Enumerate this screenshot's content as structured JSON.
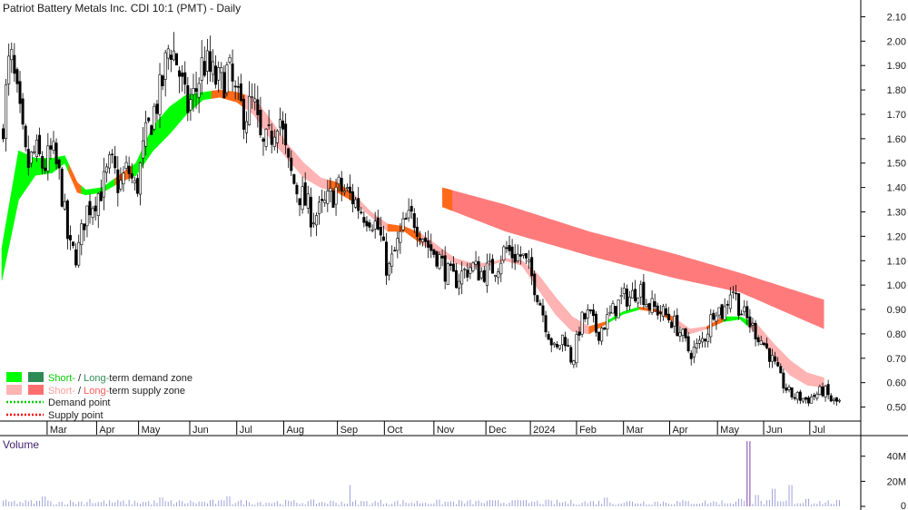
{
  "chart_data": {
    "type": "candlestick",
    "title": "Patriot Battery Metals Inc. CDI 10:1 (PMT) - Daily",
    "price_axis": {
      "range": [
        0.45,
        2.15
      ],
      "ticks": [
        "2.10",
        "2.00",
        "1.90",
        "1.80",
        "1.70",
        "1.60",
        "1.50",
        "1.40",
        "1.30",
        "1.20",
        "1.10",
        "1.00",
        "0.90",
        "0.80",
        "0.70",
        "0.60",
        "0.50"
      ]
    },
    "x_axis": {
      "range": [
        0,
        100
      ],
      "labels": [
        {
          "x": 5.4,
          "label": "Mar"
        },
        {
          "x": 11.3,
          "label": "Apr"
        },
        {
          "x": 16.3,
          "label": "May"
        },
        {
          "x": 22.4,
          "label": "Jun"
        },
        {
          "x": 28.0,
          "label": "Jul"
        },
        {
          "x": 33.6,
          "label": "Aug"
        },
        {
          "x": 40.0,
          "label": "Sep"
        },
        {
          "x": 45.6,
          "label": "Oct"
        },
        {
          "x": 51.5,
          "label": "Nov"
        },
        {
          "x": 57.7,
          "label": "Dec"
        },
        {
          "x": 63.0,
          "label": "2024"
        },
        {
          "x": 68.5,
          "label": "Feb"
        },
        {
          "x": 74.1,
          "label": "Mar"
        },
        {
          "x": 79.6,
          "label": "Apr"
        },
        {
          "x": 85.3,
          "label": "May"
        },
        {
          "x": 90.8,
          "label": "Jun"
        },
        {
          "x": 96.3,
          "label": "Jul"
        }
      ]
    },
    "price_path": [
      [
        0,
        1.62
      ],
      [
        1,
        1.95
      ],
      [
        2,
        1.72
      ],
      [
        3,
        1.48
      ],
      [
        4,
        1.55
      ],
      [
        5,
        1.48
      ],
      [
        6,
        1.55
      ],
      [
        7,
        1.42
      ],
      [
        8,
        1.15
      ],
      [
        9,
        1.12
      ],
      [
        10,
        1.3
      ],
      [
        11,
        1.35
      ],
      [
        12,
        1.4
      ],
      [
        13,
        1.5
      ],
      [
        14,
        1.4
      ],
      [
        15,
        1.48
      ],
      [
        16,
        1.38
      ],
      [
        17,
        1.58
      ],
      [
        18,
        1.7
      ],
      [
        19,
        1.8
      ],
      [
        20,
        2.0
      ],
      [
        21,
        1.9
      ],
      [
        22,
        1.72
      ],
      [
        23,
        1.78
      ],
      [
        24,
        1.92
      ],
      [
        25,
        1.86
      ],
      [
        26,
        1.82
      ],
      [
        27,
        1.88
      ],
      [
        28,
        1.75
      ],
      [
        29,
        1.7
      ],
      [
        30,
        1.75
      ],
      [
        31,
        1.55
      ],
      [
        32,
        1.6
      ],
      [
        33,
        1.72
      ],
      [
        34,
        1.5
      ],
      [
        35,
        1.4
      ],
      [
        36,
        1.35
      ],
      [
        37,
        1.28
      ],
      [
        38,
        1.3
      ],
      [
        39,
        1.35
      ],
      [
        40,
        1.4
      ],
      [
        41,
        1.38
      ],
      [
        42,
        1.35
      ],
      [
        43,
        1.3
      ],
      [
        44,
        1.28
      ],
      [
        45,
        1.22
      ],
      [
        46,
        1.05
      ],
      [
        47,
        1.15
      ],
      [
        48,
        1.25
      ],
      [
        49,
        1.28
      ],
      [
        50,
        1.22
      ],
      [
        51,
        1.15
      ],
      [
        52,
        1.12
      ],
      [
        53,
        1.05
      ],
      [
        54,
        1.02
      ],
      [
        55,
        1.05
      ],
      [
        56,
        1.08
      ],
      [
        57,
        1.05
      ],
      [
        58,
        1.06
      ],
      [
        59,
        1.08
      ],
      [
        60,
        1.15
      ],
      [
        61,
        1.12
      ],
      [
        62,
        1.12
      ],
      [
        63,
        1.05
      ],
      [
        64,
        0.95
      ],
      [
        65,
        0.82
      ],
      [
        66,
        0.72
      ],
      [
        67,
        0.8
      ],
      [
        68,
        0.68
      ],
      [
        69,
        0.85
      ],
      [
        70,
        0.88
      ],
      [
        71,
        0.8
      ],
      [
        72,
        0.85
      ],
      [
        73,
        0.9
      ],
      [
        74,
        0.95
      ],
      [
        75,
        0.95
      ],
      [
        76,
        1.0
      ],
      [
        77,
        0.92
      ],
      [
        78,
        0.9
      ],
      [
        79,
        0.88
      ],
      [
        80,
        0.85
      ],
      [
        81,
        0.8
      ],
      [
        82,
        0.72
      ],
      [
        83,
        0.75
      ],
      [
        84,
        0.8
      ],
      [
        85,
        0.92
      ],
      [
        86,
        0.88
      ],
      [
        87,
        1.0
      ],
      [
        88,
        0.9
      ],
      [
        89,
        0.85
      ],
      [
        90,
        0.8
      ],
      [
        91,
        0.75
      ],
      [
        92,
        0.68
      ],
      [
        93,
        0.6
      ],
      [
        94,
        0.55
      ],
      [
        95,
        0.54
      ],
      [
        96,
        0.53
      ],
      [
        97,
        0.55
      ],
      [
        98,
        0.57
      ],
      [
        99,
        0.52
      ]
    ],
    "short_term_zone": [
      [
        0,
        1.02,
        1.15
      ],
      [
        2,
        1.35,
        1.55
      ],
      [
        4,
        1.45,
        1.52
      ],
      [
        6,
        1.46,
        1.52
      ],
      [
        7.5,
        1.5,
        1.53
      ],
      [
        9,
        1.38,
        1.42
      ],
      [
        10,
        1.37,
        1.39
      ],
      [
        12,
        1.38,
        1.4
      ],
      [
        14,
        1.42,
        1.45
      ],
      [
        16,
        1.45,
        1.5
      ],
      [
        18,
        1.55,
        1.65
      ],
      [
        20,
        1.62,
        1.73
      ],
      [
        22,
        1.7,
        1.78
      ],
      [
        24,
        1.76,
        1.79
      ],
      [
        26,
        1.77,
        1.8
      ],
      [
        28,
        1.75,
        1.79
      ],
      [
        30,
        1.7,
        1.77
      ],
      [
        32,
        1.6,
        1.68
      ],
      [
        34,
        1.52,
        1.58
      ],
      [
        36,
        1.44,
        1.5
      ],
      [
        38,
        1.4,
        1.44
      ],
      [
        40,
        1.38,
        1.42
      ],
      [
        42,
        1.34,
        1.37
      ],
      [
        44,
        1.28,
        1.3
      ],
      [
        46,
        1.22,
        1.25
      ],
      [
        48,
        1.22,
        1.24
      ],
      [
        50,
        1.17,
        1.21
      ],
      [
        52,
        1.13,
        1.16
      ],
      [
        54,
        1.09,
        1.11
      ],
      [
        56,
        1.07,
        1.09
      ],
      [
        58,
        1.08,
        1.09
      ],
      [
        60,
        1.1,
        1.11
      ],
      [
        62,
        1.08,
        1.1
      ],
      [
        64,
        0.98,
        1.04
      ],
      [
        66,
        0.88,
        0.95
      ],
      [
        68,
        0.81,
        0.87
      ],
      [
        70,
        0.8,
        0.83
      ],
      [
        72,
        0.84,
        0.85
      ],
      [
        74,
        0.88,
        0.89
      ],
      [
        76,
        0.9,
        0.91
      ],
      [
        78,
        0.89,
        0.9
      ],
      [
        80,
        0.85,
        0.87
      ],
      [
        82,
        0.8,
        0.82
      ],
      [
        84,
        0.82,
        0.83
      ],
      [
        86,
        0.85,
        0.87
      ],
      [
        88,
        0.86,
        0.87
      ],
      [
        90,
        0.8,
        0.84
      ],
      [
        92,
        0.7,
        0.76
      ],
      [
        94,
        0.63,
        0.69
      ],
      [
        96,
        0.59,
        0.64
      ],
      [
        98,
        0.58,
        0.62
      ]
    ],
    "long_term_zone": [
      [
        52.5,
        1.32,
        1.4
      ],
      [
        60,
        1.22,
        1.33
      ],
      [
        70,
        1.12,
        1.22
      ],
      [
        80,
        1.03,
        1.13
      ],
      [
        88,
        0.97,
        1.05
      ],
      [
        98,
        0.82,
        0.94
      ]
    ],
    "volume_axis": {
      "range": [
        0,
        55
      ],
      "unit": "M",
      "ticks": [
        "40M",
        "20M",
        "0"
      ]
    },
    "volume_spikes": [
      [
        5,
        8
      ],
      [
        10.6,
        6
      ],
      [
        19,
        7
      ],
      [
        27,
        8
      ],
      [
        41.6,
        17
      ],
      [
        61,
        5
      ],
      [
        72,
        7
      ],
      [
        88,
        6
      ],
      [
        89,
        52
      ],
      [
        90,
        9
      ],
      [
        92,
        14
      ],
      [
        94,
        17
      ],
      [
        96,
        6
      ]
    ],
    "volume_base": 3,
    "legend": [
      {
        "prefix": "Short-",
        "mid": " / ",
        "main": "Long-",
        "rest": "term demand zone",
        "colors": [
          "#00cc00",
          "#2e8b57"
        ]
      },
      {
        "prefix": "Short-",
        "mid": " / ",
        "main": "Long-",
        "rest": "term supply zone",
        "colors": [
          "#ffb3b3",
          "#ff6e6e"
        ]
      },
      {
        "label": "Demand point",
        "color": "#00cc00"
      },
      {
        "label": "Supply point",
        "color": "#ff0000"
      }
    ],
    "volume_label": "Volume",
    "colors": {
      "demand_short": "#00ff00",
      "demand_long": "#2e8b57",
      "supply_short": "#ffb3b3",
      "supply_long": "#ff7b7b",
      "transition": "#ff6a1a",
      "volume_bar": "#9ea1d9",
      "volume_spike": "#7a3fa8"
    }
  }
}
